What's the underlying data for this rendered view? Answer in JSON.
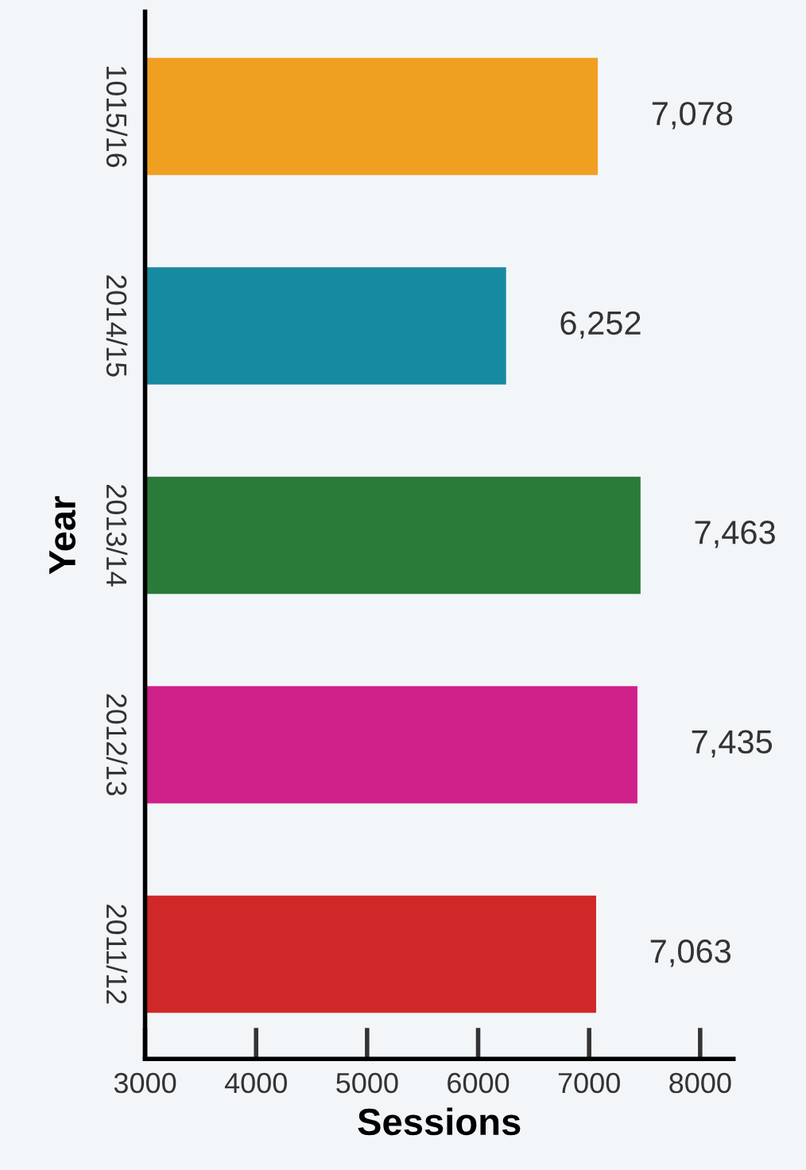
{
  "chart_data": {
    "type": "bar",
    "orientation": "horizontal",
    "xlabel": "Sessions",
    "ylabel": "Year",
    "categories": [
      "1015/16",
      "2014/15",
      "2013/14",
      "2012/13",
      "2011/12"
    ],
    "values": [
      7078,
      6252,
      7463,
      7435,
      7063
    ],
    "colors": [
      "#f0a020",
      "#168aa0",
      "#2a7a3a",
      "#d0208a",
      "#d02828"
    ],
    "xlim": [
      3000,
      8300
    ],
    "xticks": [
      3000,
      4000,
      5000,
      6000,
      7000,
      8000
    ],
    "value_labels": [
      "7,078",
      "6,252",
      "7,463",
      "7,435",
      "7,063"
    ],
    "grid": false,
    "legend": false
  }
}
